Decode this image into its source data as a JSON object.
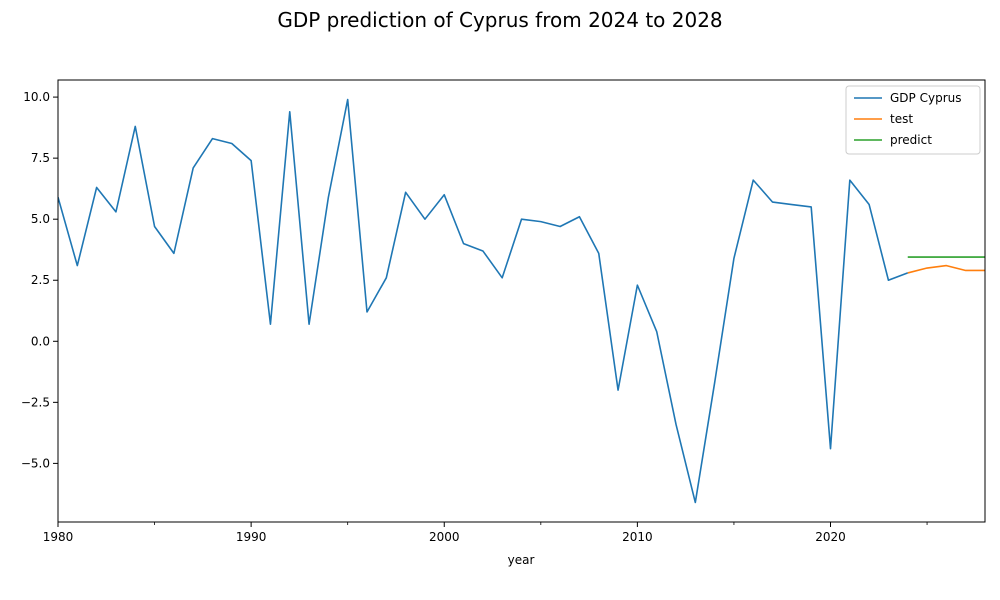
{
  "chart_data": {
    "type": "line",
    "title": "GDP prediction of Cyprus from 2024 to 2028",
    "xlabel": "year",
    "ylabel": "",
    "xlim": [
      1980,
      2028
    ],
    "ylim": [
      -7.4,
      10.7
    ],
    "x_ticks": [
      1980,
      1990,
      2000,
      2010,
      2020
    ],
    "x_tick_labels": [
      "1980",
      "1990",
      "2000",
      "2010",
      "2020"
    ],
    "x_minor_ticks": [
      1985,
      1995,
      2005,
      2015,
      2025
    ],
    "y_ticks": [
      -5.0,
      -2.5,
      0.0,
      2.5,
      5.0,
      7.5,
      10.0
    ],
    "y_tick_labels": [
      "−5.0",
      "−2.5",
      "0.0",
      "2.5",
      "5.0",
      "7.5",
      "10.0"
    ],
    "grid": false,
    "legend_position": "top-right",
    "series": [
      {
        "name": "GDP Cyprus",
        "color": "#1f77b4",
        "x": [
          1980,
          1981,
          1982,
          1983,
          1984,
          1985,
          1986,
          1987,
          1988,
          1989,
          1990,
          1991,
          1992,
          1993,
          1994,
          1995,
          1996,
          1997,
          1998,
          1999,
          2000,
          2001,
          2002,
          2003,
          2004,
          2005,
          2006,
          2007,
          2008,
          2009,
          2010,
          2011,
          2012,
          2013,
          2014,
          2015,
          2016,
          2017,
          2018,
          2019,
          2020,
          2021,
          2022,
          2023,
          2024
        ],
        "y": [
          5.9,
          3.1,
          6.3,
          5.3,
          8.8,
          4.7,
          3.6,
          7.1,
          8.3,
          8.1,
          7.4,
          0.7,
          9.4,
          0.7,
          5.9,
          9.9,
          1.2,
          2.6,
          6.1,
          5.0,
          6.0,
          4.0,
          3.7,
          2.6,
          5.0,
          4.9,
          4.7,
          5.1,
          3.6,
          -2.0,
          2.3,
          0.4,
          -3.4,
          -6.6,
          -1.7,
          3.4,
          6.6,
          5.7,
          5.6,
          5.5,
          -4.4,
          6.6,
          5.6,
          2.5,
          2.8
        ]
      },
      {
        "name": "test",
        "color": "#ff7f0e",
        "x": [
          2024,
          2025,
          2026,
          2027,
          2028
        ],
        "y": [
          2.8,
          3.0,
          3.1,
          2.9,
          2.9
        ]
      },
      {
        "name": "predict",
        "color": "#2ca02c",
        "x": [
          2024,
          2025,
          2026,
          2027,
          2028
        ],
        "y": [
          3.45,
          3.45,
          3.45,
          3.45,
          3.45
        ]
      }
    ]
  }
}
